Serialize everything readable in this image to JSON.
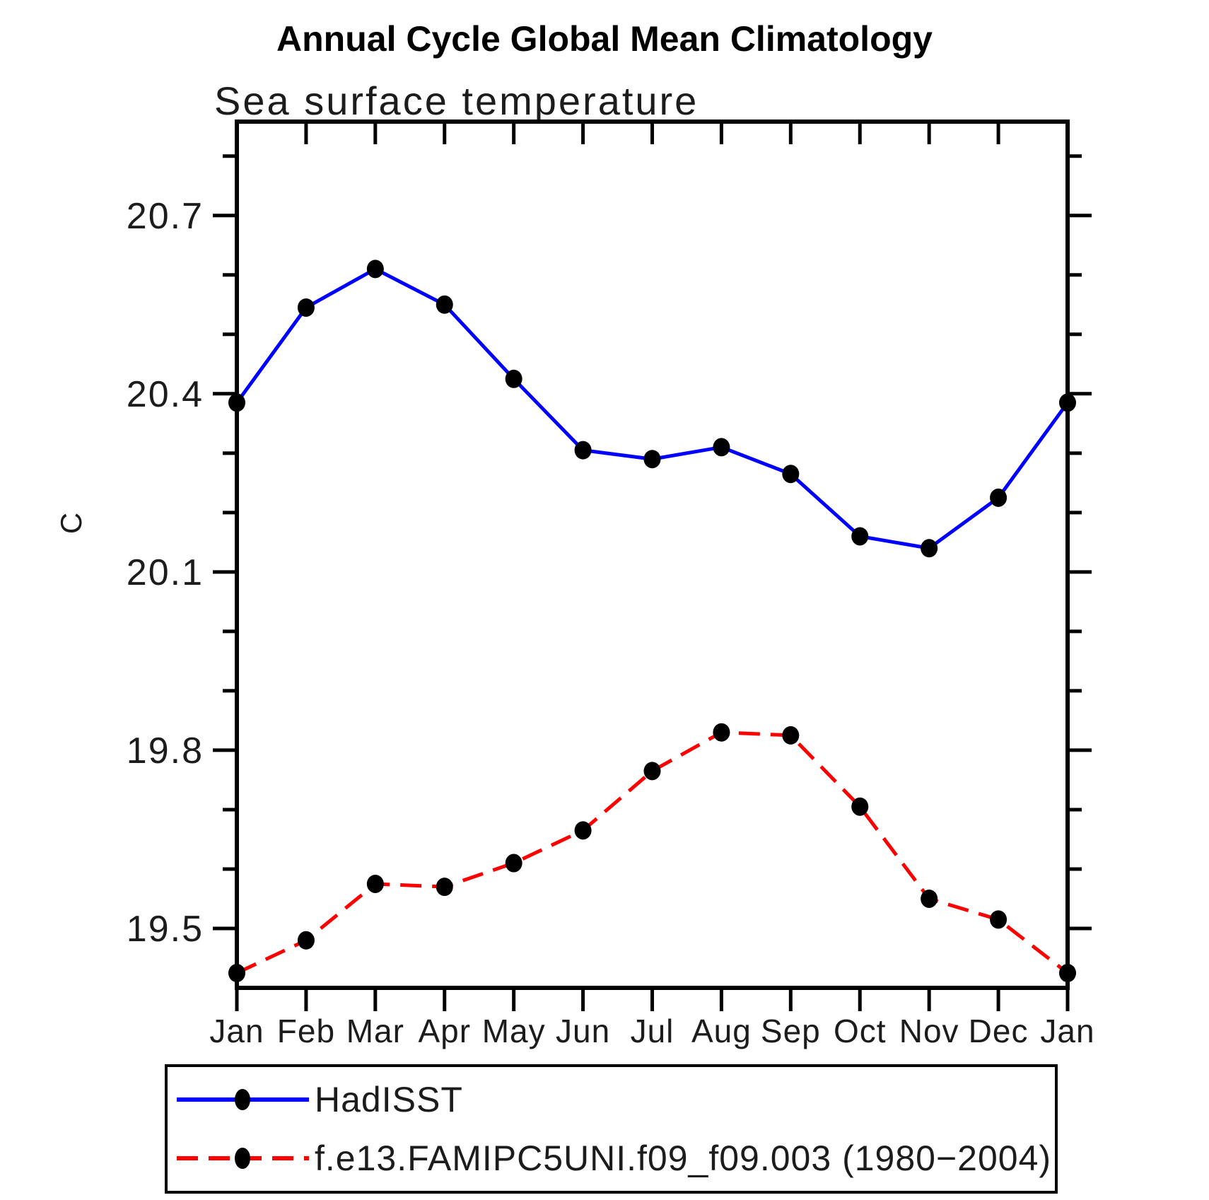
{
  "header": {
    "title": "Annual Cycle Global Mean Climatology",
    "subtitle": "Sea surface temperature"
  },
  "axes": {
    "y_label": "C",
    "x_tick_labels": [
      "Jan",
      "Feb",
      "Mar",
      "Apr",
      "May",
      "Jun",
      "Jul",
      "Aug",
      "Sep",
      "Oct",
      "Nov",
      "Dec",
      "Jan"
    ],
    "y_major_ticks": [
      19.5,
      19.8,
      20.1,
      20.4,
      20.7
    ],
    "y_minor_step": 0.1
  },
  "legend": {
    "items": [
      {
        "label": "HadISST",
        "color": "#0000FF",
        "dash": "solid",
        "marker_color": "#000000"
      },
      {
        "label": "f.e13.FAMIPC5UNI.f09_f09.003 (1980−2004)",
        "color": "#FF0000",
        "dash": "dashed",
        "marker_color": "#000000"
      }
    ]
  },
  "chart_data": {
    "type": "line",
    "title": "Annual Cycle Global Mean Climatology",
    "subtitle": "Sea surface temperature",
    "xlabel": "",
    "ylabel": "C",
    "categories": [
      "Jan",
      "Feb",
      "Mar",
      "Apr",
      "May",
      "Jun",
      "Jul",
      "Aug",
      "Sep",
      "Oct",
      "Nov",
      "Dec",
      "Jan"
    ],
    "series": [
      {
        "name": "HadISST",
        "color": "#0000FF",
        "style": "solid",
        "marker": "filled-circle",
        "marker_color": "#000000",
        "values": [
          20.385,
          20.545,
          20.61,
          20.55,
          20.425,
          20.305,
          20.29,
          20.31,
          20.265,
          20.16,
          20.14,
          20.225,
          20.385
        ]
      },
      {
        "name": "f.e13.FAMIPC5UNI.f09_f09.003 (1980−2004)",
        "color": "#FF0000",
        "style": "dashed",
        "marker": "filled-circle",
        "marker_color": "#000000",
        "values": [
          19.425,
          19.48,
          19.575,
          19.57,
          19.61,
          19.665,
          19.765,
          19.83,
          19.825,
          19.705,
          19.55,
          19.515,
          19.425
        ]
      }
    ],
    "ylim": [
      19.4,
      20.858
    ],
    "y_major_ticks": [
      19.5,
      19.8,
      20.1,
      20.4,
      20.7
    ],
    "y_minor_step": 0.1,
    "grid": false,
    "legend_position": "bottom"
  }
}
